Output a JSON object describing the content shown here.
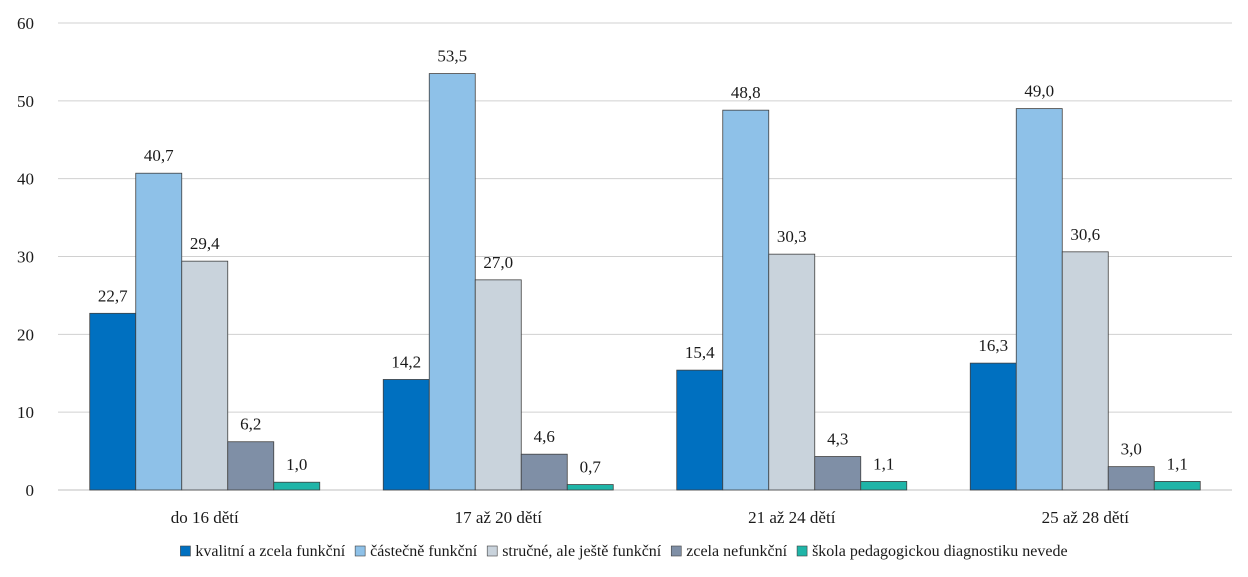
{
  "chart_data": {
    "type": "bar",
    "title": "",
    "xlabel": "",
    "ylabel": "",
    "ylim": [
      0,
      60
    ],
    "y_ticks": [
      0,
      10,
      20,
      30,
      40,
      50,
      60
    ],
    "grid": "horizontal",
    "legend_position": "bottom",
    "categories": [
      "do 16 dětí",
      "17 až 20 dětí",
      "21 až 24 dětí",
      "25 až 28 dětí"
    ],
    "series": [
      {
        "name": "kvalitní a zcela funkční",
        "color": "#0070C0",
        "values": [
          22.7,
          14.2,
          15.4,
          16.3
        ],
        "labels": [
          "22,7",
          "14,2",
          "15,4",
          "16,3"
        ]
      },
      {
        "name": "částečně funkční",
        "color": "#8EC1E8",
        "values": [
          40.7,
          53.5,
          48.8,
          49.0
        ],
        "labels": [
          "40,7",
          "53,5",
          "48,8",
          "49,0"
        ]
      },
      {
        "name": "stručné, ale ještě funkční",
        "color": "#C9D3DC",
        "values": [
          29.4,
          27.0,
          30.3,
          30.6
        ],
        "labels": [
          "29,4",
          "27,0",
          "30,3",
          "30,6"
        ]
      },
      {
        "name": "zcela nefunkční",
        "color": "#7F8FA6",
        "values": [
          6.2,
          4.6,
          4.3,
          3.0
        ],
        "labels": [
          "6,2",
          "4,6",
          "4,3",
          "3,0"
        ]
      },
      {
        "name": "škola pedagogickou diagnostiku nevede",
        "color": "#1FB5A8",
        "values": [
          1.0,
          0.7,
          1.1,
          1.1
        ],
        "labels": [
          "1,0",
          "0,7",
          "1,1",
          "1,1"
        ]
      }
    ]
  }
}
